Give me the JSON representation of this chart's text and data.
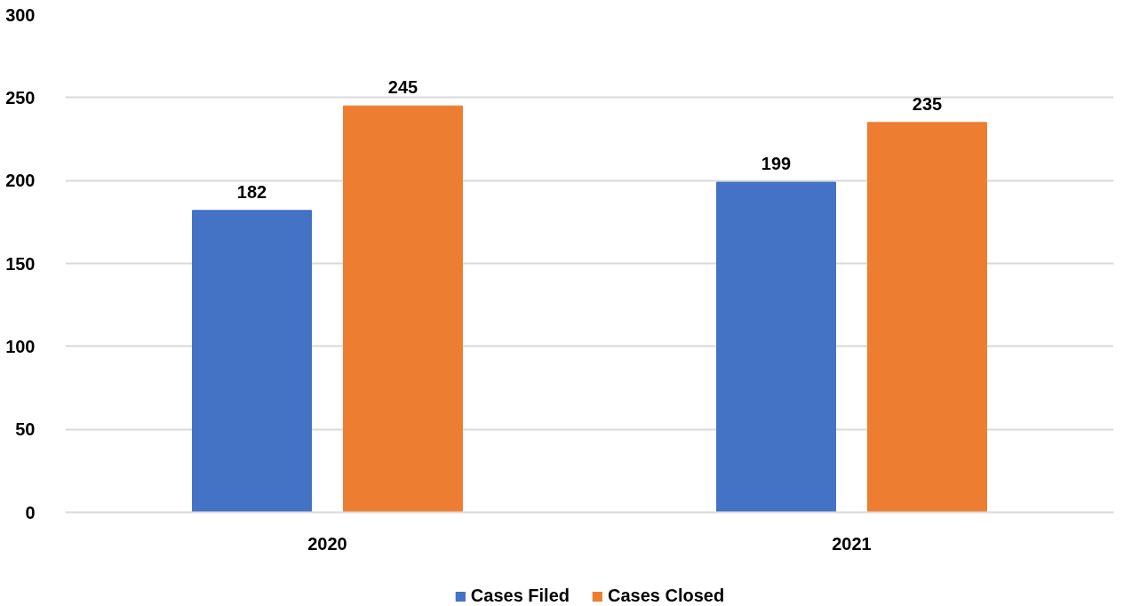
{
  "chart_data": {
    "type": "bar",
    "categories": [
      "2020",
      "2021"
    ],
    "series": [
      {
        "name": "Cases Filed",
        "color": "#4472c4",
        "values": [
          182,
          199
        ]
      },
      {
        "name": "Cases Closed",
        "color": "#ed7d31",
        "values": [
          245,
          235
        ]
      }
    ],
    "ylim": [
      0,
      300
    ],
    "yticks": [
      0,
      50,
      100,
      150,
      200,
      250,
      300
    ],
    "grid": "y",
    "legend": "bottom",
    "data_labels": true
  }
}
